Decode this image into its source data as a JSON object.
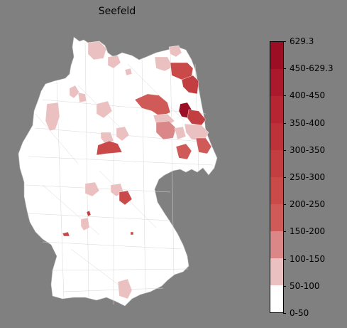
{
  "title": "Seefeld",
  "legend": {
    "labels": [
      "629.3",
      "450-629.3",
      "400-450",
      "350-400",
      "300-350",
      "250-300",
      "200-250",
      "150-200",
      "100-150",
      "50-100",
      "0-50"
    ],
    "colors": [
      "#9b0e24",
      "#ab1a2c",
      "#b52632",
      "#bd3238",
      "#c33e40",
      "#c94a49",
      "#cf5a57",
      "#dc8787",
      "#ebc0c0",
      "#ffffff"
    ]
  },
  "colors": {
    "background": "#808080",
    "land": "#ffffff",
    "border": "#c8c8c8"
  }
}
